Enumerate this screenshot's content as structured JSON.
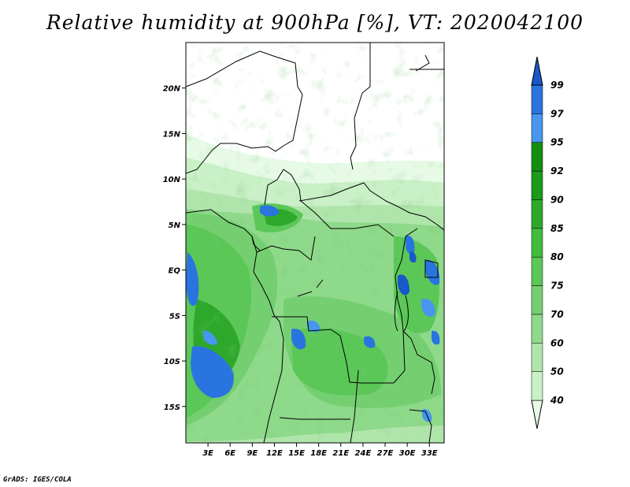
{
  "title": "Relative humidity at 900hPa [%], VT: 2020042100",
  "footer": "GrADS: IGES/COLA",
  "map": {
    "lon_range": [
      0,
      35
    ],
    "lat_range": [
      -19,
      25
    ],
    "lat_ticks": [
      {
        "v": 20,
        "label": "20N"
      },
      {
        "v": 15,
        "label": "15N"
      },
      {
        "v": 10,
        "label": "10N"
      },
      {
        "v": 5,
        "label": "5N"
      },
      {
        "v": 0,
        "label": "EQ"
      },
      {
        "v": -5,
        "label": "5S"
      },
      {
        "v": -10,
        "label": "10S"
      },
      {
        "v": -15,
        "label": "15S"
      }
    ],
    "lon_ticks": [
      {
        "v": 3,
        "label": "3E"
      },
      {
        "v": 6,
        "label": "6E"
      },
      {
        "v": 9,
        "label": "9E"
      },
      {
        "v": 12,
        "label": "12E"
      },
      {
        "v": 15,
        "label": "15E"
      },
      {
        "v": 18,
        "label": "18E"
      },
      {
        "v": 21,
        "label": "21E"
      },
      {
        "v": 24,
        "label": "24E"
      },
      {
        "v": 27,
        "label": "27E"
      },
      {
        "v": 30,
        "label": "30E"
      },
      {
        "v": 33,
        "label": "33E"
      }
    ]
  },
  "colorbar": {
    "levels": [
      "40",
      "50",
      "60",
      "70",
      "75",
      "80",
      "85",
      "90",
      "92",
      "95",
      "97",
      "99"
    ],
    "colors": [
      "#e6fae6",
      "#c9f0c6",
      "#afe5ab",
      "#8ed98a",
      "#74cf70",
      "#5ac757",
      "#43ba40",
      "#2ea82b",
      "#1c9a1a",
      "#158c12",
      "#4896ee",
      "#2a74e0",
      "#1858c8"
    ]
  },
  "colors": {
    "land_outline": "#000000",
    "frame": "#000000"
  }
}
